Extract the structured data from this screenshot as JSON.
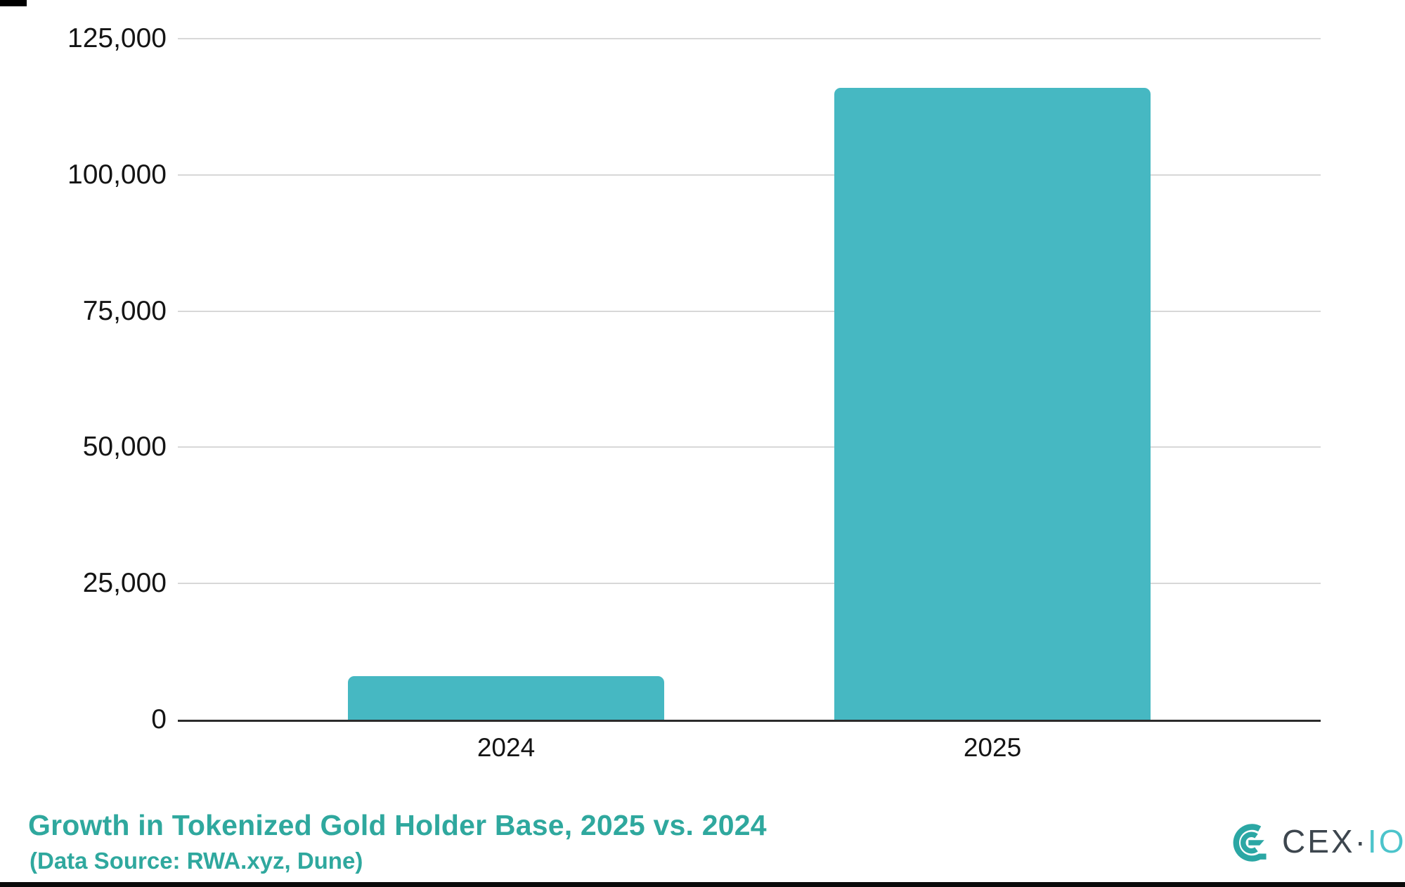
{
  "chart_data": {
    "type": "bar",
    "title": "Growth in Tokenized Gold Holder Base, 2025 vs. 2024",
    "subtitle": "(Data Source: RWA.xyz, Dune)",
    "categories": [
      "2024",
      "2025"
    ],
    "values": [
      8000,
      116000
    ],
    "ylim": [
      0,
      125000
    ],
    "yticks": [
      0,
      25000,
      50000,
      75000,
      100000,
      125000
    ],
    "ytick_labels": [
      "0",
      "25,000",
      "50,000",
      "75,000",
      "100,000",
      "125,000"
    ],
    "grid": "horizontal-light-gray",
    "legend": "none",
    "xlabel": "",
    "ylabel": ""
  },
  "logo": {
    "mark_icon": "cexio-monogram-icon",
    "text_primary": "CEX",
    "separator": "·",
    "text_secondary": "IO"
  },
  "colors": {
    "bar": "#46b8c2",
    "grid": "#d8d8d8",
    "axis": "#2b2b2b",
    "tick_text": "#141414",
    "title_text": "#2fa89e",
    "logo_mark": "#2ba7a4",
    "logo_dark": "#3d464e",
    "logo_teal": "#4cc4cb"
  }
}
